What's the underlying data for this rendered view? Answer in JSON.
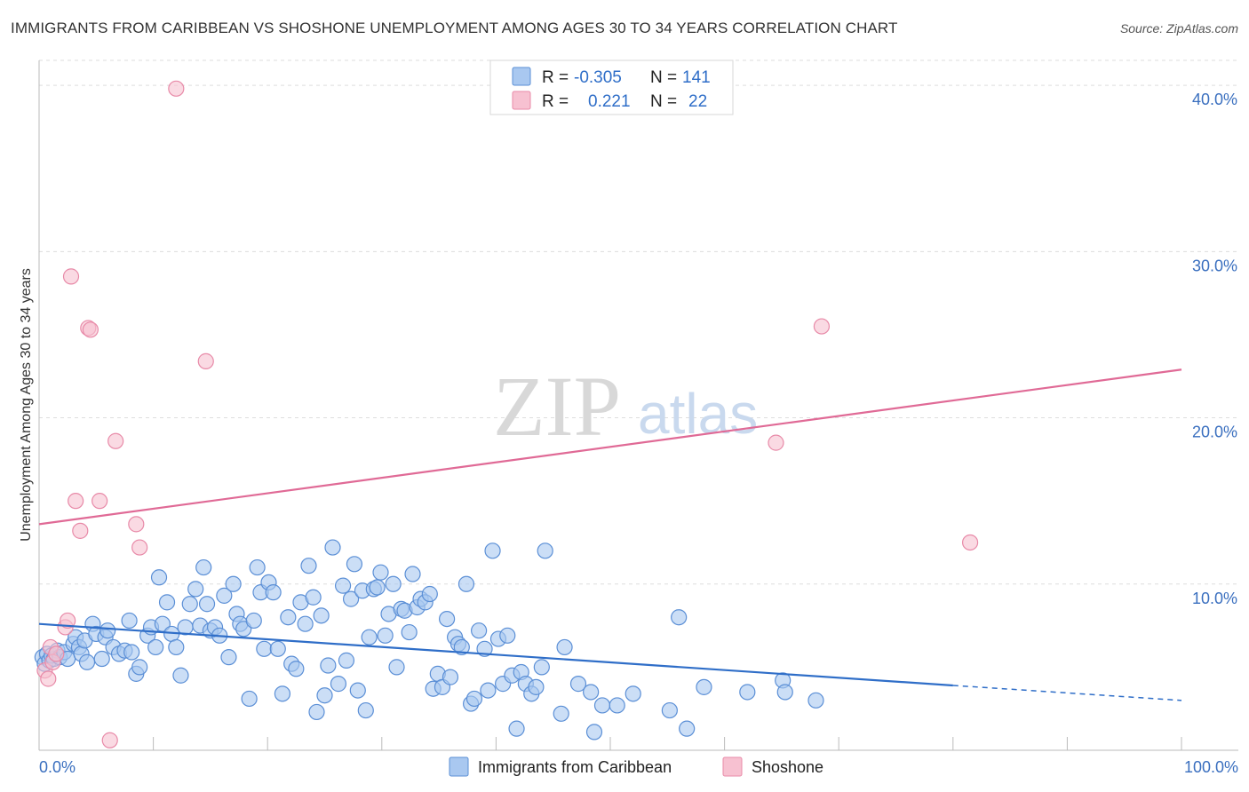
{
  "title": "IMMIGRANTS FROM CARIBBEAN VS SHOSHONE UNEMPLOYMENT AMONG AGES 30 TO 34 YEARS CORRELATION CHART",
  "source": "Source: ZipAtlas.com",
  "watermark": {
    "zip": "ZIP",
    "atlas": "atlas"
  },
  "legend": {
    "r_label": "R =",
    "n_label": "N =",
    "rows": [
      {
        "name": "Immigrants from Caribbean",
        "r": "-0.305",
        "n": "141"
      },
      {
        "name": "Shoshone",
        "r": "0.221",
        "n": "22"
      }
    ]
  },
  "colors": {
    "blue_fill": "#a9c8f0",
    "blue_stroke": "#5b8fd6",
    "blue_line": "#2f6ec8",
    "pink_fill": "#f7c1d1",
    "pink_stroke": "#e88aa8",
    "pink_line": "#e06a96",
    "grid": "#dddddd",
    "tick_label": "#3a6fbf"
  },
  "chart_data": {
    "type": "scatter",
    "title": "IMMIGRANTS FROM CARIBBEAN VS SHOSHONE UNEMPLOYMENT AMONG AGES 30 TO 34 YEARS CORRELATION CHART",
    "xlabel": "",
    "ylabel": "Unemployment Among Ages 30 to 34 years",
    "xlim": [
      0,
      100
    ],
    "ylim": [
      0,
      41.5
    ],
    "x_tick_labels": [
      "0.0%",
      "100.0%"
    ],
    "y_ticks": [
      10,
      20,
      30,
      40
    ],
    "y_tick_labels": [
      "10.0%",
      "20.0%",
      "30.0%",
      "40.0%"
    ],
    "grid": true,
    "legend_position": "top-center",
    "series": [
      {
        "name": "Immigrants from Caribbean",
        "points": [
          [
            0.3,
            5.6
          ],
          [
            0.5,
            5.2
          ],
          [
            0.7,
            5.8
          ],
          [
            0.9,
            5.4
          ],
          [
            1.1,
            5.7
          ],
          [
            1.3,
            5.5
          ],
          [
            1.6,
            6.0
          ],
          [
            1.8,
            5.6
          ],
          [
            2.2,
            5.9
          ],
          [
            2.5,
            5.5
          ],
          [
            3.0,
            6.4
          ],
          [
            3.2,
            6.8
          ],
          [
            3.5,
            6.2
          ],
          [
            3.7,
            5.8
          ],
          [
            4.0,
            6.6
          ],
          [
            4.2,
            5.3
          ],
          [
            4.7,
            7.6
          ],
          [
            5.0,
            7.0
          ],
          [
            5.5,
            5.5
          ],
          [
            5.8,
            6.8
          ],
          [
            6.0,
            7.2
          ],
          [
            6.5,
            6.2
          ],
          [
            7.0,
            5.8
          ],
          [
            7.5,
            6.0
          ],
          [
            7.9,
            7.8
          ],
          [
            8.1,
            5.9
          ],
          [
            8.5,
            4.6
          ],
          [
            8.8,
            5.0
          ],
          [
            9.5,
            6.9
          ],
          [
            9.8,
            7.4
          ],
          [
            10.2,
            6.2
          ],
          [
            10.5,
            10.4
          ],
          [
            10.8,
            7.6
          ],
          [
            11.2,
            8.9
          ],
          [
            11.6,
            7.0
          ],
          [
            12.0,
            6.2
          ],
          [
            12.4,
            4.5
          ],
          [
            12.8,
            7.4
          ],
          [
            13.2,
            8.8
          ],
          [
            13.7,
            9.7
          ],
          [
            14.1,
            7.5
          ],
          [
            14.4,
            11.0
          ],
          [
            14.7,
            8.8
          ],
          [
            15.0,
            7.2
          ],
          [
            15.4,
            7.4
          ],
          [
            15.8,
            6.9
          ],
          [
            16.2,
            9.3
          ],
          [
            16.6,
            5.6
          ],
          [
            17.0,
            10.0
          ],
          [
            17.3,
            8.2
          ],
          [
            17.6,
            7.6
          ],
          [
            17.9,
            7.3
          ],
          [
            18.4,
            3.1
          ],
          [
            18.8,
            7.8
          ],
          [
            19.1,
            11.0
          ],
          [
            19.4,
            9.5
          ],
          [
            19.7,
            6.1
          ],
          [
            20.1,
            10.1
          ],
          [
            20.5,
            9.5
          ],
          [
            20.9,
            6.1
          ],
          [
            21.3,
            3.4
          ],
          [
            21.8,
            8.0
          ],
          [
            22.1,
            5.2
          ],
          [
            22.5,
            4.9
          ],
          [
            22.9,
            8.9
          ],
          [
            23.3,
            7.6
          ],
          [
            23.6,
            11.1
          ],
          [
            24.0,
            9.2
          ],
          [
            24.3,
            2.3
          ],
          [
            24.7,
            8.1
          ],
          [
            25.0,
            3.3
          ],
          [
            25.3,
            5.1
          ],
          [
            25.7,
            12.2
          ],
          [
            26.2,
            4.0
          ],
          [
            26.6,
            9.9
          ],
          [
            26.9,
            5.4
          ],
          [
            27.3,
            9.1
          ],
          [
            27.6,
            11.2
          ],
          [
            27.9,
            3.6
          ],
          [
            28.3,
            9.6
          ],
          [
            28.6,
            2.4
          ],
          [
            28.9,
            6.8
          ],
          [
            29.3,
            9.7
          ],
          [
            29.6,
            9.8
          ],
          [
            29.9,
            10.7
          ],
          [
            30.3,
            6.9
          ],
          [
            30.6,
            8.2
          ],
          [
            31.0,
            10.0
          ],
          [
            31.3,
            5.0
          ],
          [
            31.7,
            8.5
          ],
          [
            32.0,
            8.4
          ],
          [
            32.4,
            7.1
          ],
          [
            32.7,
            10.6
          ],
          [
            33.1,
            8.6
          ],
          [
            33.4,
            9.1
          ],
          [
            33.8,
            8.9
          ],
          [
            34.2,
            9.4
          ],
          [
            34.5,
            3.7
          ],
          [
            34.9,
            4.6
          ],
          [
            35.3,
            3.8
          ],
          [
            35.7,
            7.9
          ],
          [
            36.0,
            4.4
          ],
          [
            36.4,
            6.8
          ],
          [
            36.7,
            6.4
          ],
          [
            37.0,
            6.2
          ],
          [
            37.4,
            10.0
          ],
          [
            37.8,
            2.8
          ],
          [
            38.1,
            3.1
          ],
          [
            38.5,
            7.2
          ],
          [
            39.0,
            6.1
          ],
          [
            39.3,
            3.6
          ],
          [
            39.7,
            12.0
          ],
          [
            40.2,
            6.7
          ],
          [
            40.6,
            4.0
          ],
          [
            41.0,
            6.9
          ],
          [
            41.4,
            4.5
          ],
          [
            41.8,
            1.3
          ],
          [
            42.2,
            4.7
          ],
          [
            42.6,
            4.0
          ],
          [
            43.1,
            3.4
          ],
          [
            43.5,
            3.8
          ],
          [
            44.0,
            5.0
          ],
          [
            44.3,
            12.0
          ],
          [
            45.7,
            2.2
          ],
          [
            46.0,
            6.2
          ],
          [
            47.2,
            4.0
          ],
          [
            48.3,
            3.5
          ],
          [
            48.6,
            1.1
          ],
          [
            49.3,
            2.7
          ],
          [
            50.6,
            2.7
          ],
          [
            52.0,
            3.4
          ],
          [
            55.2,
            2.4
          ],
          [
            56.0,
            8.0
          ],
          [
            56.7,
            1.3
          ],
          [
            58.2,
            3.8
          ],
          [
            62.0,
            3.5
          ],
          [
            65.1,
            4.2
          ],
          [
            65.3,
            3.5
          ],
          [
            68.0,
            3.0
          ]
        ],
        "trend": {
          "x0": 0,
          "y0": 7.6,
          "x1": 80,
          "y1": 3.9,
          "dash_to_x": 100,
          "dash_to_y": 3.0
        }
      },
      {
        "name": "Shoshone",
        "points": [
          [
            0.5,
            4.8
          ],
          [
            0.8,
            4.3
          ],
          [
            1.0,
            6.2
          ],
          [
            1.2,
            5.3
          ],
          [
            2.3,
            7.4
          ],
          [
            2.5,
            7.8
          ],
          [
            2.8,
            28.5
          ],
          [
            3.2,
            15.0
          ],
          [
            3.6,
            13.2
          ],
          [
            4.3,
            25.4
          ],
          [
            4.5,
            25.3
          ],
          [
            5.3,
            15.0
          ],
          [
            6.2,
            0.6
          ],
          [
            6.7,
            18.6
          ],
          [
            8.5,
            13.6
          ],
          [
            8.8,
            12.2
          ],
          [
            12.0,
            39.8
          ],
          [
            14.6,
            23.4
          ],
          [
            64.5,
            18.5
          ],
          [
            68.5,
            25.5
          ],
          [
            81.5,
            12.5
          ],
          [
            1.5,
            5.8
          ]
        ],
        "trend": {
          "x0": 0,
          "y0": 13.6,
          "x1": 100,
          "y1": 22.9
        }
      }
    ]
  }
}
